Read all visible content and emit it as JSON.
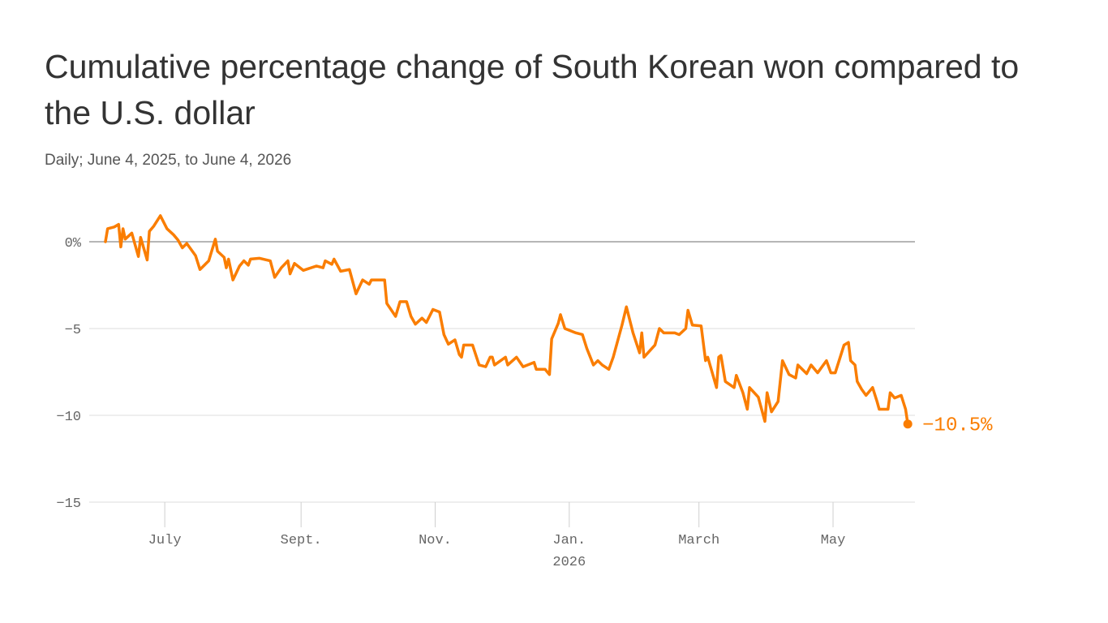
{
  "chart_data": {
    "type": "line",
    "title": "Cumulative percentage change of South Korean won compared to the U.S. dollar",
    "subtitle": "Daily; June 4, 2025, to June 4, 2026",
    "x": [
      "2025-06-04",
      "2025-06-05",
      "2025-06-08",
      "2025-06-10",
      "2025-06-11",
      "2025-06-12",
      "2025-06-13",
      "2025-06-16",
      "2025-06-19",
      "2025-06-20",
      "2025-06-23",
      "2025-06-24",
      "2025-06-26",
      "2025-06-29",
      "2025-07-02",
      "2025-07-05",
      "2025-07-07",
      "2025-07-09",
      "2025-07-11",
      "2025-07-15",
      "2025-07-17",
      "2025-07-21",
      "2025-07-24",
      "2025-07-25",
      "2025-07-28",
      "2025-07-29",
      "2025-07-30",
      "2025-08-01",
      "2025-08-04",
      "2025-08-06",
      "2025-08-08",
      "2025-08-09",
      "2025-08-13",
      "2025-08-18",
      "2025-08-20",
      "2025-08-23",
      "2025-08-26",
      "2025-08-27",
      "2025-08-29",
      "2025-09-02",
      "2025-09-08",
      "2025-09-11",
      "2025-09-12",
      "2025-09-15",
      "2025-09-16",
      "2025-09-19",
      "2025-09-23",
      "2025-09-26",
      "2025-09-29",
      "2025-10-02",
      "2025-10-03",
      "2025-10-09",
      "2025-10-10",
      "2025-10-14",
      "2025-10-16",
      "2025-10-19",
      "2025-10-21",
      "2025-10-23",
      "2025-10-26",
      "2025-10-28",
      "2025-10-31",
      "2025-11-03",
      "2025-11-05",
      "2025-11-07",
      "2025-11-10",
      "2025-11-12",
      "2025-11-13",
      "2025-11-14",
      "2025-11-18",
      "2025-11-21",
      "2025-11-24",
      "2025-11-26",
      "2025-11-27",
      "2025-11-28",
      "2025-12-03",
      "2025-12-04",
      "2025-12-08",
      "2025-12-11",
      "2025-12-16",
      "2025-12-17",
      "2025-12-21",
      "2025-12-23",
      "2025-12-24",
      "2025-12-27",
      "2025-12-28",
      "2025-12-30",
      "2026-01-04",
      "2026-01-07",
      "2026-01-09",
      "2026-01-12",
      "2026-01-14",
      "2026-01-16",
      "2026-01-19",
      "2026-01-21",
      "2026-01-25",
      "2026-01-27",
      "2026-01-30",
      "2026-02-02",
      "2026-02-03",
      "2026-02-04",
      "2026-02-09",
      "2026-02-11",
      "2026-02-13",
      "2026-02-18",
      "2026-02-20",
      "2026-02-23",
      "2026-02-24",
      "2026-02-26",
      "2026-03-02",
      "2026-03-04",
      "2026-03-05",
      "2026-03-09",
      "2026-03-10",
      "2026-03-11",
      "2026-03-13",
      "2026-03-17",
      "2026-03-18",
      "2026-03-21",
      "2026-03-23",
      "2026-03-24",
      "2026-03-28",
      "2026-03-31",
      "2026-04-01",
      "2026-04-03",
      "2026-04-06",
      "2026-04-08",
      "2026-04-11",
      "2026-04-14",
      "2026-04-15",
      "2026-04-17",
      "2026-04-19",
      "2026-04-21",
      "2026-04-24",
      "2026-04-28",
      "2026-04-30",
      "2026-05-02",
      "2026-05-06",
      "2026-05-08",
      "2026-05-09",
      "2026-05-11",
      "2026-05-12",
      "2026-05-14",
      "2026-05-16",
      "2026-05-19",
      "2026-05-21",
      "2026-05-22",
      "2026-05-26",
      "2026-05-27",
      "2026-05-29",
      "2026-06-01",
      "2026-06-03",
      "2026-06-04"
    ],
    "series": [
      {
        "color": "#fa7d00",
        "values": [
          0,
          0.75,
          0.85,
          1.0,
          -0.3,
          0.75,
          0.15,
          0.5,
          -0.85,
          0.25,
          -1.05,
          0.6,
          0.9,
          1.5,
          0.75,
          0.4,
          0.1,
          -0.35,
          -0.1,
          -0.8,
          -1.6,
          -1.1,
          0.15,
          -0.55,
          -0.9,
          -1.5,
          -1.0,
          -2.2,
          -1.4,
          -1.1,
          -1.35,
          -1.0,
          -0.95,
          -1.1,
          -2.05,
          -1.5,
          -1.1,
          -1.85,
          -1.25,
          -1.65,
          -1.4,
          -1.5,
          -1.1,
          -1.3,
          -1.0,
          -1.7,
          -1.6,
          -3.0,
          -2.2,
          -2.45,
          -2.2,
          -2.2,
          -3.55,
          -4.3,
          -3.45,
          -3.45,
          -4.3,
          -4.75,
          -4.4,
          -4.65,
          -3.9,
          -4.05,
          -5.35,
          -5.9,
          -5.65,
          -6.5,
          -6.65,
          -5.95,
          -5.95,
          -7.1,
          -7.2,
          -6.65,
          -6.65,
          -7.1,
          -6.65,
          -7.1,
          -6.65,
          -7.2,
          -6.95,
          -7.35,
          -7.35,
          -7.65,
          -5.6,
          -4.7,
          -4.2,
          -5.0,
          -5.25,
          -5.35,
          -6.15,
          -7.1,
          -6.85,
          -7.1,
          -7.35,
          -6.65,
          -4.8,
          -3.75,
          -5.25,
          -6.4,
          -5.25,
          -6.65,
          -5.95,
          -5.0,
          -5.25,
          -5.25,
          -5.35,
          -5.0,
          -3.95,
          -4.8,
          -4.85,
          -6.85,
          -6.65,
          -8.4,
          -6.65,
          -6.55,
          -8.05,
          -8.4,
          -7.7,
          -8.7,
          -9.65,
          -8.4,
          -8.95,
          -10.35,
          -8.7,
          -9.8,
          -9.2,
          -6.85,
          -7.65,
          -7.85,
          -7.1,
          -7.35,
          -7.6,
          -7.1,
          -7.55,
          -6.85,
          -7.55,
          -7.55,
          -5.95,
          -5.8,
          -6.85,
          -7.1,
          -8.05,
          -8.5,
          -8.85,
          -8.4,
          -9.2,
          -9.65,
          -9.65,
          -8.7,
          -9.0,
          -8.85,
          -9.65,
          -10.5
        ],
        "end_label": "−10.5%"
      }
    ],
    "xlim": [
      "2025-05-28",
      "2026-06-07"
    ],
    "xticks": [
      {
        "value": "2025-07-01",
        "label": "July"
      },
      {
        "value": "2025-09-01",
        "label": "Sept."
      },
      {
        "value": "2025-11-01",
        "label": "Nov."
      },
      {
        "value": "2026-01-01",
        "label": "Jan.",
        "year": "2026"
      },
      {
        "value": "2026-03-01",
        "label": "March"
      },
      {
        "value": "2026-05-01",
        "label": "May"
      }
    ],
    "ylim": [
      -15,
      2
    ],
    "yticks": [
      {
        "value": 0,
        "label": "0%"
      },
      {
        "value": -5,
        "label": "−5"
      },
      {
        "value": -10,
        "label": "−10"
      },
      {
        "value": -15,
        "label": "−15"
      }
    ],
    "grid": true
  }
}
